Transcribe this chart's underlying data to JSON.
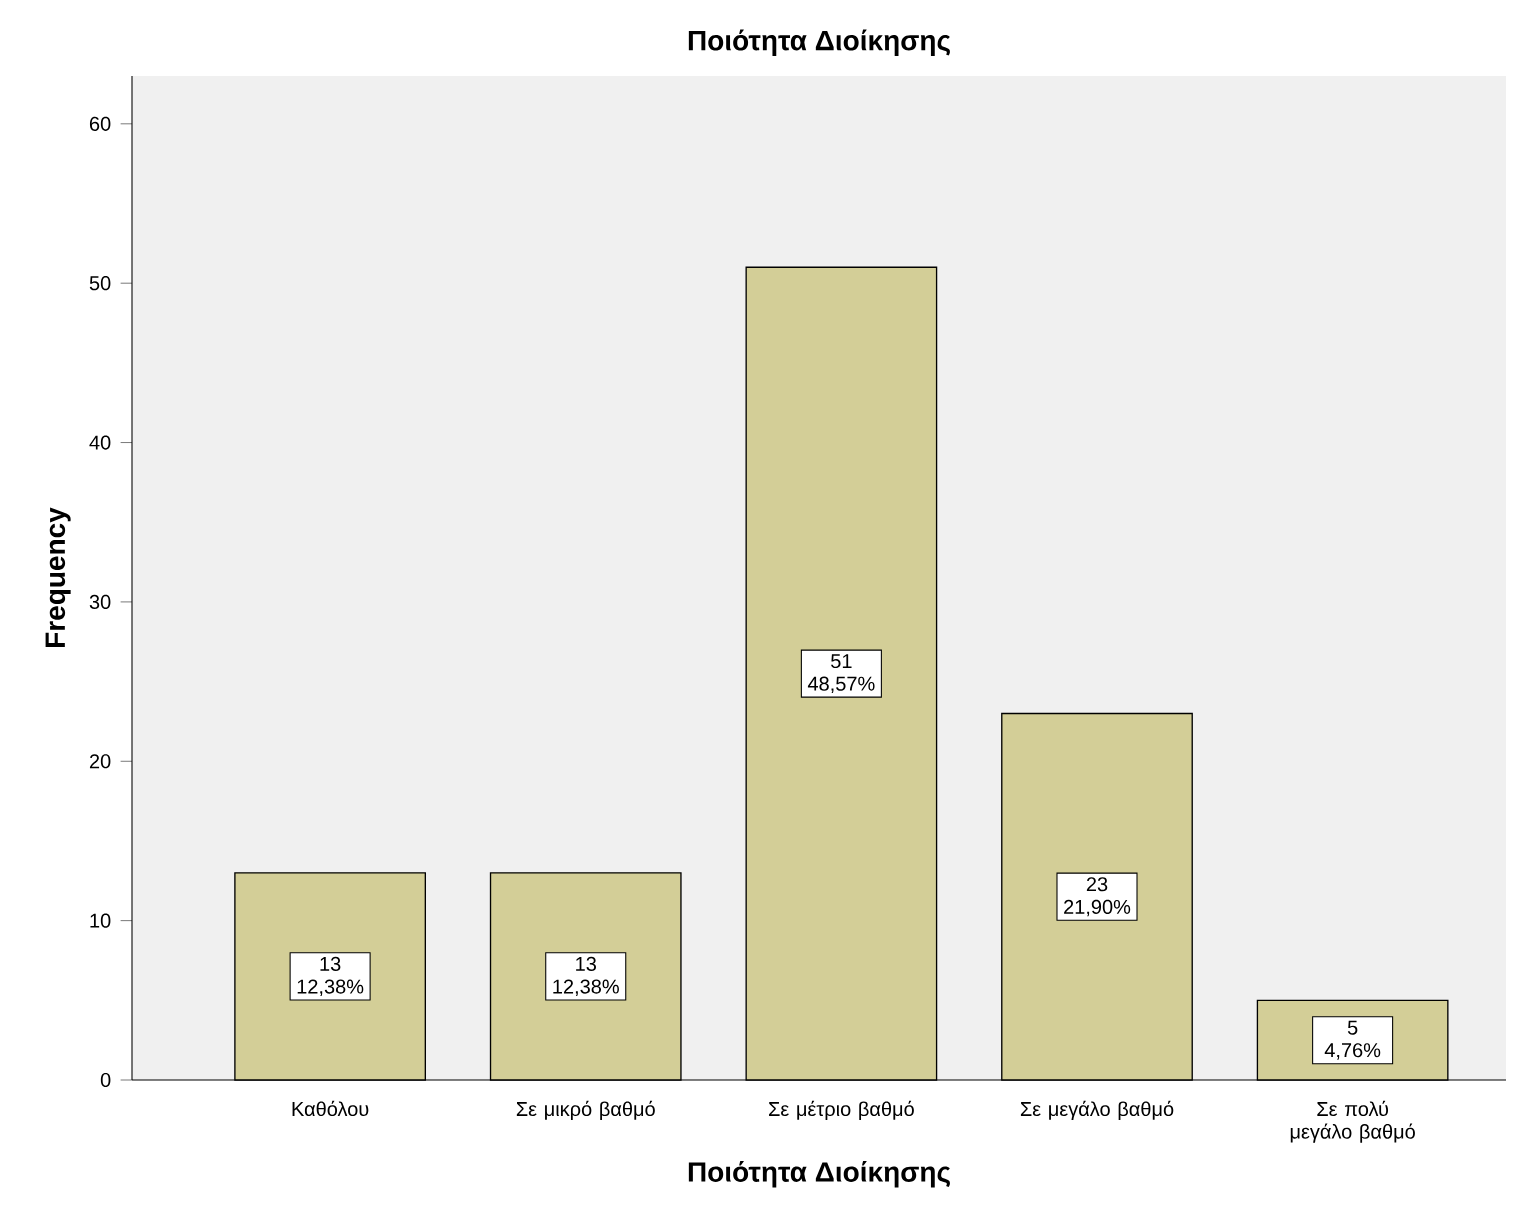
{
  "chart_data": {
    "type": "bar",
    "title": "Ποιότητα Διοίκησης",
    "xlabel": "Ποιότητα Διοίκησης",
    "ylabel": "Frequency",
    "categories": [
      "Καθόλου",
      "Σε μικρό βαθμό",
      "Σε μέτριο βαθμό",
      "Σε μεγάλο βαθμό",
      "Σε πολύ μεγάλο βαθμό"
    ],
    "values": [
      13,
      13,
      51,
      23,
      5
    ],
    "value_labels": [
      "13 12,38%",
      "13 12,38%",
      "51 48,57%",
      "23 21,90%",
      "5 4,76%"
    ],
    "color": "#d3ce97",
    "ylim": [
      0,
      63
    ],
    "yticks": [
      0,
      10,
      20,
      30,
      40,
      50,
      60
    ],
    "grid": false
  }
}
